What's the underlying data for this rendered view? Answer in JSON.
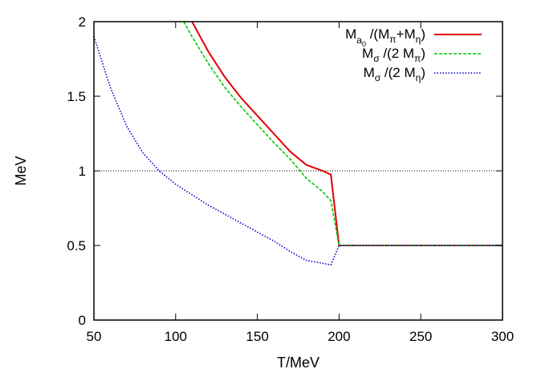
{
  "chart_data": {
    "type": "line",
    "xlabel": "T/MeV",
    "ylabel": "MeV",
    "xlim": [
      50,
      300
    ],
    "ylim": [
      0,
      2
    ],
    "xticks": [
      50,
      100,
      150,
      200,
      250,
      300
    ],
    "yticks": [
      0,
      0.5,
      1,
      1.5,
      2
    ],
    "xtick_labels": [
      "50",
      "100",
      "150",
      "200",
      "250",
      "300"
    ],
    "ytick_labels": [
      "0",
      "0.5",
      "1",
      "1.5",
      "2"
    ],
    "reference_line": {
      "y": 1,
      "style": "dotted",
      "color": "#000000"
    },
    "legend_position": "top-right",
    "series": [
      {
        "label_parts": {
          "a": "M",
          "a_sub": "a",
          "a_subsub": "0",
          "b": " /(M",
          "b_sub": "π",
          "c": "+M",
          "c_sub": "η",
          "d": ")"
        },
        "color": "#e00000",
        "style": "solid",
        "x": [
          110,
          120,
          130,
          140,
          150,
          160,
          170,
          180,
          190,
          195,
          200,
          210,
          220,
          230,
          240,
          250,
          260,
          270,
          280,
          290,
          300
        ],
        "y": [
          2.0,
          1.8,
          1.63,
          1.49,
          1.37,
          1.25,
          1.13,
          1.04,
          1.0,
          0.975,
          0.5,
          0.5,
          0.5,
          0.5,
          0.5,
          0.5,
          0.5,
          0.5,
          0.5,
          0.5,
          0.5
        ]
      },
      {
        "label_parts": {
          "a": "M",
          "a_sub": "σ",
          "b": " /(2 M",
          "b_sub": "π",
          "d": ")"
        },
        "color": "#00c800",
        "style": "dashed",
        "x": [
          105,
          110,
          120,
          130,
          140,
          150,
          160,
          170,
          180,
          190,
          195,
          200,
          210,
          220,
          230,
          240,
          250,
          260,
          270,
          280,
          290,
          300
        ],
        "y": [
          2.0,
          1.9,
          1.72,
          1.56,
          1.43,
          1.31,
          1.19,
          1.08,
          0.95,
          0.86,
          0.8,
          0.5,
          0.5,
          0.5,
          0.5,
          0.5,
          0.5,
          0.5,
          0.5,
          0.5,
          0.5,
          0.5
        ]
      },
      {
        "label_parts": {
          "a": "M",
          "a_sub": "σ",
          "b": " /(2 M",
          "b_sub": "η",
          "d": ")"
        },
        "color": "#0000d0",
        "style": "dotted",
        "x": [
          50,
          60,
          70,
          80,
          90,
          100,
          110,
          120,
          130,
          140,
          150,
          160,
          170,
          180,
          190,
          195,
          200,
          210,
          220,
          230,
          240,
          250,
          260,
          270,
          280,
          290,
          300
        ],
        "y": [
          1.9,
          1.56,
          1.3,
          1.12,
          1.0,
          0.91,
          0.84,
          0.77,
          0.71,
          0.65,
          0.59,
          0.53,
          0.46,
          0.4,
          0.38,
          0.37,
          0.5,
          0.5,
          0.5,
          0.5,
          0.5,
          0.5,
          0.5,
          0.5,
          0.5,
          0.5,
          0.5
        ]
      }
    ]
  }
}
